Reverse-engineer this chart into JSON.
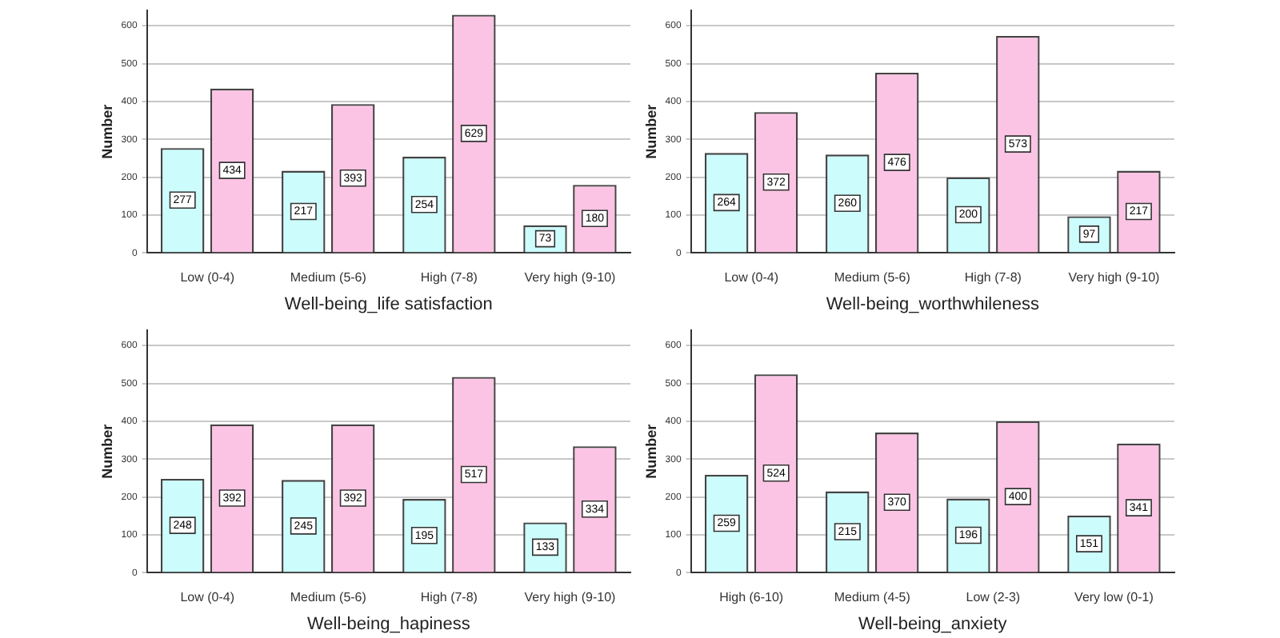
{
  "chart_data": [
    {
      "type": "bar",
      "xlabel": "Well-being_life satisfaction",
      "ylabel": "Number",
      "categories": [
        "Low (0-4)",
        "Medium (5-6)",
        "High (7-8)",
        "Very high (9-10)"
      ],
      "series": [
        {
          "color": "#ccfcfc",
          "values": [
            277,
            217,
            254,
            73
          ]
        },
        {
          "color": "#fcc4e4",
          "values": [
            434,
            393,
            629,
            180
          ]
        }
      ],
      "ylim": [
        0,
        640
      ],
      "yticks": [
        0,
        100,
        200,
        300,
        400,
        500,
        600
      ],
      "grid": "y",
      "data_labels": true,
      "legend": false
    },
    {
      "type": "bar",
      "xlabel": "Well-being_worthwhileness",
      "ylabel": "Number",
      "categories": [
        "Low (0-4)",
        "Medium (5-6)",
        "High (7-8)",
        "Very high (9-10)"
      ],
      "series": [
        {
          "color": "#ccfcfc",
          "values": [
            264,
            260,
            200,
            97
          ]
        },
        {
          "color": "#fcc4e4",
          "values": [
            372,
            476,
            573,
            217
          ]
        }
      ],
      "ylim": [
        0,
        640
      ],
      "yticks": [
        0,
        100,
        200,
        300,
        400,
        500,
        600
      ],
      "grid": "y",
      "data_labels": true,
      "legend": false
    },
    {
      "type": "bar",
      "xlabel": "Well-being_hapiness",
      "ylabel": "Number",
      "categories": [
        "Low (0-4)",
        "Medium (5-6)",
        "High (7-8)",
        "Very high (9-10)"
      ],
      "series": [
        {
          "color": "#ccfcfc",
          "values": [
            248,
            245,
            195,
            133
          ]
        },
        {
          "color": "#fcc4e4",
          "values": [
            392,
            392,
            517,
            334
          ]
        }
      ],
      "ylim": [
        0,
        640
      ],
      "yticks": [
        0,
        100,
        200,
        300,
        400,
        500,
        600
      ],
      "grid": "y",
      "data_labels": true,
      "legend": false
    },
    {
      "type": "bar",
      "xlabel": "Well-being_anxiety",
      "ylabel": "Number",
      "categories": [
        "High (6-10)",
        "Medium (4-5)",
        "Low (2-3)",
        "Very low (0-1)"
      ],
      "series": [
        {
          "color": "#ccfcfc",
          "values": [
            259,
            215,
            196,
            151
          ]
        },
        {
          "color": "#fcc4e4",
          "values": [
            524,
            370,
            400,
            341
          ]
        }
      ],
      "ylim": [
        0,
        640
      ],
      "yticks": [
        0,
        100,
        200,
        300,
        400,
        500,
        600
      ],
      "grid": "y",
      "data_labels": true,
      "legend": false
    }
  ]
}
